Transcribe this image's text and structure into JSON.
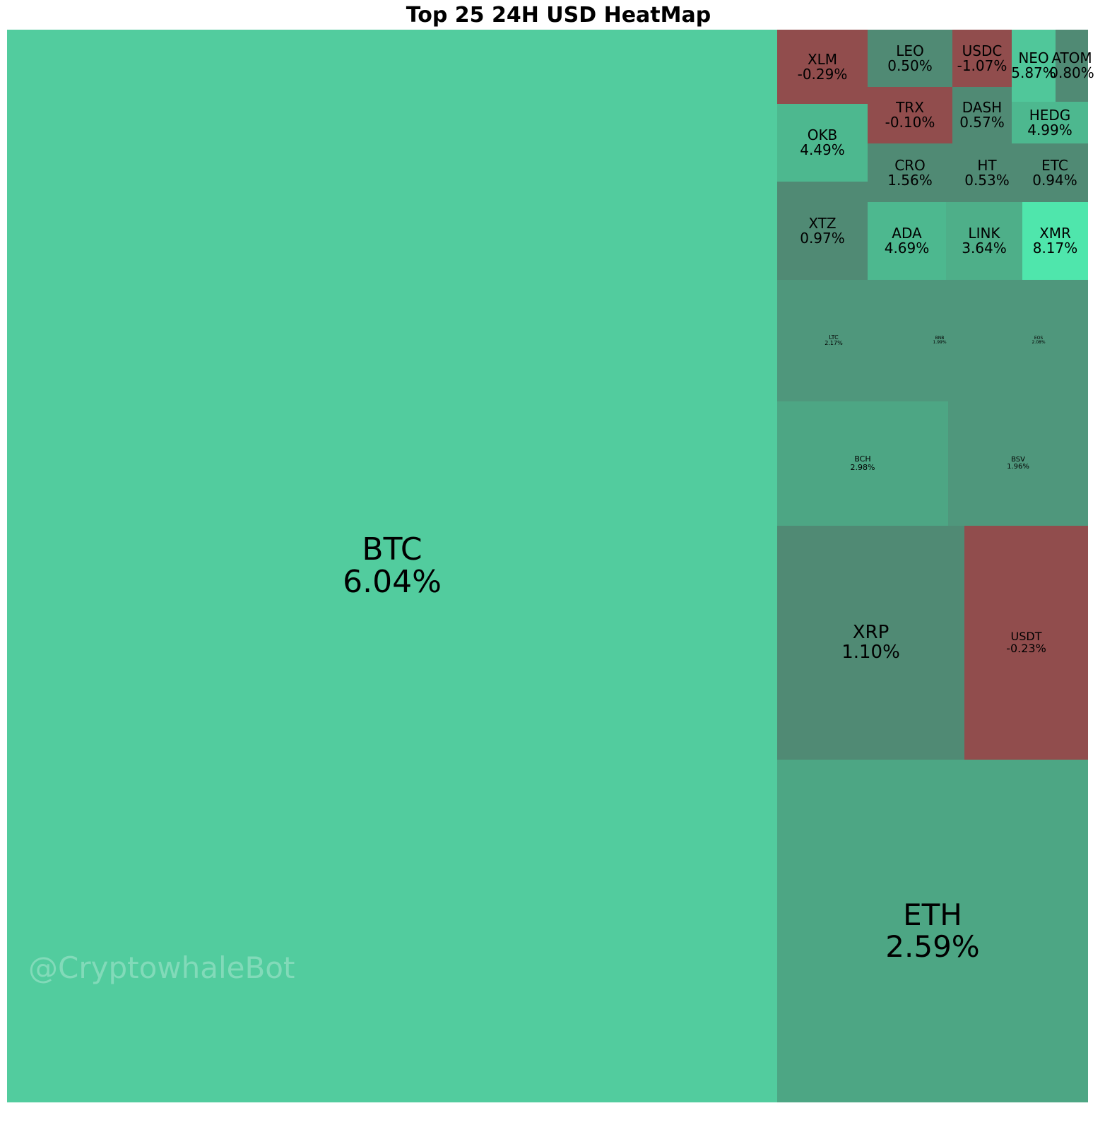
{
  "chart_data": {
    "type": "treemap",
    "title": "Top 25 24H USD HeatMap",
    "colors": {
      "up_strong": "#52cc9e",
      "up_max": "#4fe6ac",
      "up_mid": "#4da684",
      "flat": "#508a74",
      "down": "#914d4d"
    },
    "tiles": [
      {
        "symbol": "BTC",
        "change": "6.04%",
        "color": "#52cc9e"
      },
      {
        "symbol": "ETH",
        "change": "2.59%",
        "color": "#4da684"
      },
      {
        "symbol": "XRP",
        "change": "1.10%",
        "color": "#508a74"
      },
      {
        "symbol": "USDT",
        "change": "-0.23%",
        "color": "#914d4d"
      },
      {
        "symbol": "BCH",
        "change": "2.98%",
        "color": "#4da684"
      },
      {
        "symbol": "BSV",
        "change": "1.96%",
        "color": "#4f977c"
      },
      {
        "symbol": "LTC",
        "change": "2.17%",
        "color": "#4f977c"
      },
      {
        "symbol": "BNB",
        "change": "1.99%",
        "color": "#4f977c"
      },
      {
        "symbol": "EOS",
        "change": "2.08%",
        "color": "#4f977c"
      },
      {
        "symbol": "XTZ",
        "change": "0.97%",
        "color": "#508a74"
      },
      {
        "symbol": "ADA",
        "change": "4.69%",
        "color": "#4db88f"
      },
      {
        "symbol": "LINK",
        "change": "3.64%",
        "color": "#4eaf89"
      },
      {
        "symbol": "XMR",
        "change": "8.17%",
        "color": "#4fe6ac"
      },
      {
        "symbol": "OKB",
        "change": "4.49%",
        "color": "#4db88f"
      },
      {
        "symbol": "CRO",
        "change": "1.56%",
        "color": "#508a74"
      },
      {
        "symbol": "HT",
        "change": "0.53%",
        "color": "#508a74"
      },
      {
        "symbol": "ETC",
        "change": "0.94%",
        "color": "#508a74"
      },
      {
        "symbol": "XLM",
        "change": "-0.29%",
        "color": "#914d4d"
      },
      {
        "symbol": "LEO",
        "change": "0.50%",
        "color": "#508a74"
      },
      {
        "symbol": "TRX",
        "change": "-0.10%",
        "color": "#914d4d"
      },
      {
        "symbol": "DASH",
        "change": "0.57%",
        "color": "#508a74"
      },
      {
        "symbol": "USDC",
        "change": "-1.07%",
        "color": "#914d4d"
      },
      {
        "symbol": "HEDG",
        "change": "4.99%",
        "color": "#4db88f"
      },
      {
        "symbol": "NEO",
        "change": "5.87%",
        "color": "#50c79a"
      },
      {
        "symbol": "ATOM",
        "change": "0.80%",
        "color": "#508a74"
      }
    ]
  },
  "watermark": "@CryptowhaleBot"
}
